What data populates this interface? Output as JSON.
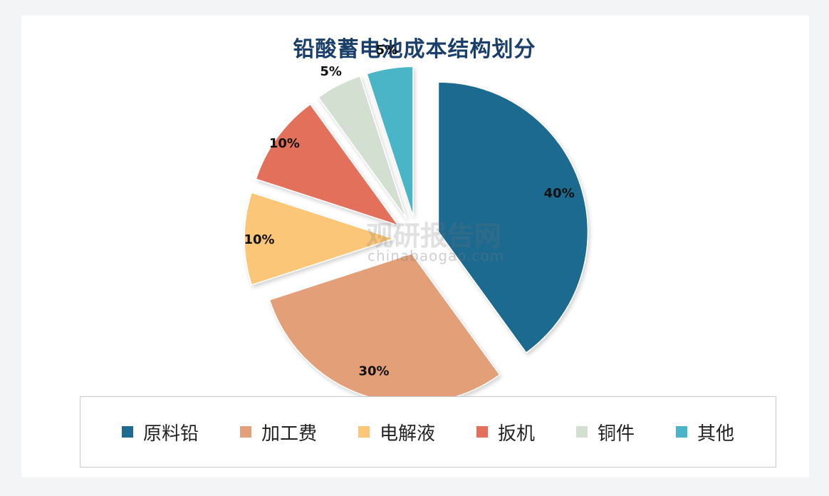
{
  "watermark": {
    "name": "观研报告网",
    "url": "chinabaogao.com"
  },
  "chart_data": {
    "type": "pie",
    "title": "铅酸蓄电池成本结构划分",
    "categories": [
      "原料铅",
      "加工费",
      "电解液",
      "扳机",
      "铜件",
      "其他"
    ],
    "values": [
      40,
      30,
      10,
      10,
      5,
      5
    ],
    "data_labels": [
      "40%",
      "30%",
      "10%",
      "10%",
      "5%",
      "5%"
    ],
    "colors": [
      "#1e6a90",
      "#e39f78",
      "#fbc677",
      "#e2705a",
      "#d3dfd1",
      "#49b5c7"
    ],
    "legend_position": "bottom",
    "exploded": true
  }
}
